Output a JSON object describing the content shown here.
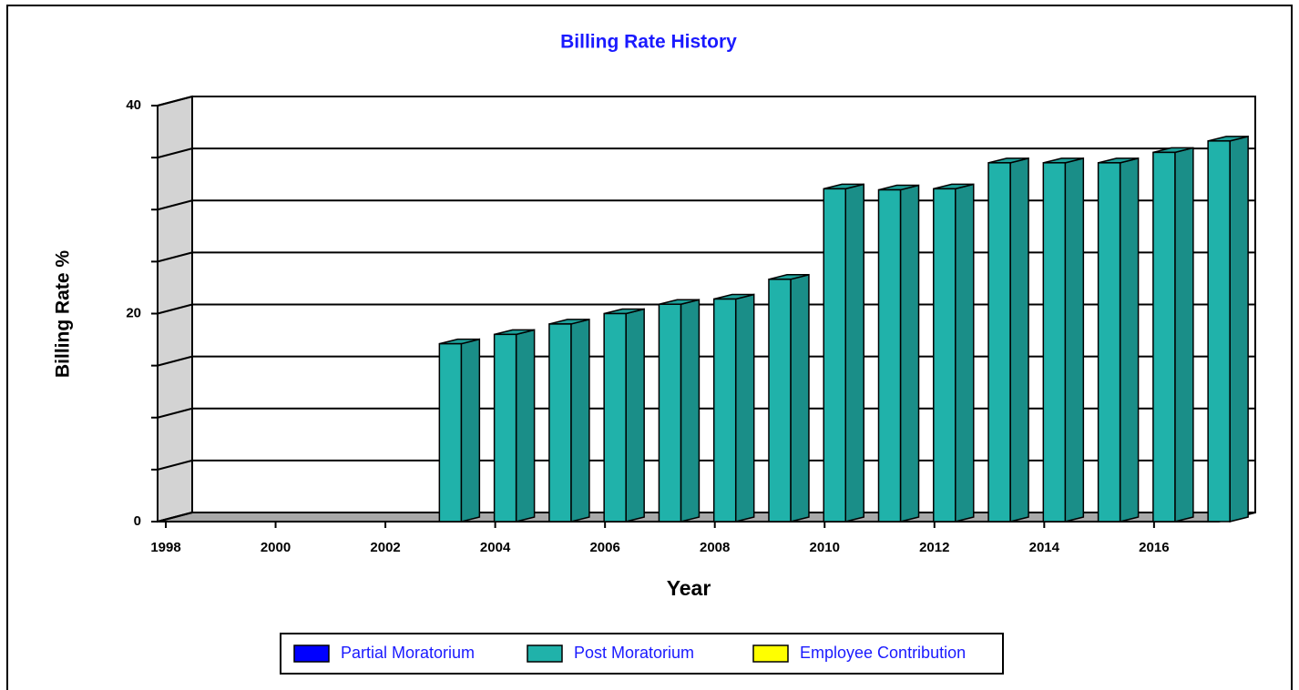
{
  "chart_data": {
    "type": "bar3d",
    "title": "Billing Rate History",
    "x_label": "Year",
    "y_label": "Billing Rate %",
    "categories": [
      "1998",
      null,
      "2000",
      null,
      "2002",
      null,
      "2004",
      null,
      "2006",
      null,
      "2008",
      null,
      "2010",
      null,
      "2012",
      null,
      "2014",
      null,
      "2016",
      null
    ],
    "series": [
      {
        "name": "Partial Moratorium",
        "color": "#0000ff",
        "values": [
          null,
          null,
          null,
          null,
          null,
          null,
          null,
          null,
          null,
          null,
          null,
          null,
          null,
          null,
          null,
          null,
          null,
          null,
          null,
          null
        ]
      },
      {
        "name": "Post Moratorium",
        "color": "#20b2aa",
        "values": [
          null,
          null,
          null,
          null,
          null,
          17.1,
          18,
          19,
          20,
          20.9,
          21.4,
          23.3,
          32,
          31.9,
          32,
          34.5,
          34.5,
          34.5,
          35.5,
          36.6
        ]
      },
      {
        "name": "Employee Contribution",
        "color": "#ffff00",
        "values": [
          null,
          null,
          null,
          null,
          null,
          null,
          null,
          null,
          null,
          null,
          null,
          null,
          null,
          null,
          null,
          null,
          null,
          null,
          null,
          null
        ]
      }
    ],
    "ylim": [
      0,
      40
    ],
    "yticks": [
      0,
      20,
      40
    ],
    "minor_yticks": [
      5,
      10,
      15,
      25,
      30,
      35
    ],
    "grid": true
  }
}
